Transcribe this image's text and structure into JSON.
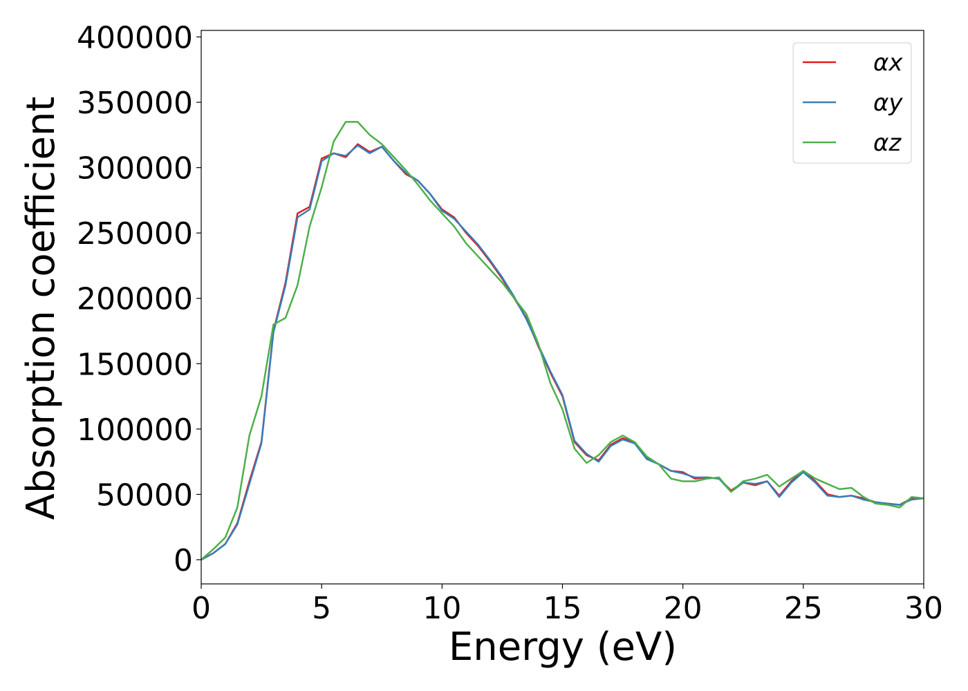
{
  "chart_data": {
    "type": "line",
    "xlabel": "Energy (eV)",
    "ylabel": "Absorption coefficient",
    "x": [
      0,
      0.5,
      1,
      1.5,
      2,
      2.5,
      3,
      3.5,
      4,
      4.5,
      5,
      5.5,
      6,
      6.5,
      7,
      7.5,
      8,
      8.5,
      9,
      9.5,
      10,
      10.5,
      11,
      11.5,
      12,
      12.5,
      13,
      13.5,
      14,
      14.5,
      15,
      15.5,
      16,
      16.5,
      17,
      17.5,
      18,
      18.5,
      19,
      19.5,
      20,
      20.5,
      21,
      21.5,
      22,
      22.5,
      23,
      23.5,
      24,
      24.5,
      25,
      25.5,
      26,
      26.5,
      27,
      27.5,
      28,
      28.5,
      29,
      29.5,
      30
    ],
    "series": [
      {
        "name": "αx",
        "color": "#e41a1c",
        "values": [
          0,
          5000,
          12000,
          28000,
          60000,
          90000,
          175000,
          212000,
          265000,
          270000,
          307000,
          311000,
          308000,
          318000,
          312000,
          316000,
          305000,
          295000,
          290000,
          280000,
          268000,
          262000,
          250000,
          240000,
          228000,
          215000,
          200000,
          185000,
          163000,
          143000,
          125000,
          90000,
          80000,
          76000,
          88000,
          93000,
          90000,
          78000,
          73000,
          68000,
          67000,
          62000,
          63000,
          62000,
          53000,
          59000,
          57000,
          60000,
          49000,
          60000,
          68000,
          60000,
          50000,
          48000,
          49000,
          47000,
          44000,
          43000,
          42000,
          47000,
          47000
        ]
      },
      {
        "name": "αy",
        "color": "#377eb8",
        "values": [
          0,
          5000,
          12000,
          27000,
          58000,
          89000,
          174000,
          210000,
          262000,
          268000,
          305000,
          311000,
          309000,
          317000,
          311000,
          316000,
          305000,
          296000,
          290000,
          280000,
          267000,
          261000,
          251000,
          241000,
          229000,
          216000,
          201000,
          184000,
          164000,
          144000,
          126000,
          91000,
          81000,
          75000,
          87000,
          92000,
          89000,
          77000,
          73000,
          68000,
          66000,
          63000,
          63000,
          62000,
          52000,
          59000,
          58000,
          60000,
          48000,
          59000,
          67000,
          59000,
          49000,
          48000,
          49000,
          46000,
          44000,
          43000,
          42000,
          46000,
          47000
        ]
      },
      {
        "name": "αz",
        "color": "#4daf4a",
        "values": [
          0,
          8000,
          17000,
          40000,
          95000,
          125000,
          180000,
          185000,
          210000,
          255000,
          285000,
          320000,
          335000,
          335000,
          325000,
          318000,
          308000,
          298000,
          287000,
          275000,
          265000,
          255000,
          242000,
          232000,
          222000,
          212000,
          200000,
          188000,
          165000,
          135000,
          115000,
          85000,
          74000,
          80000,
          90000,
          95000,
          90000,
          79000,
          73000,
          62000,
          60000,
          60000,
          62000,
          63000,
          52000,
          60000,
          62000,
          65000,
          56000,
          62000,
          68000,
          62000,
          58000,
          54000,
          55000,
          48000,
          43000,
          42000,
          40000,
          48000,
          47000
        ]
      }
    ],
    "xlim": [
      0,
      30
    ],
    "xticks": [
      0,
      5,
      10,
      15,
      20,
      25,
      30
    ],
    "ylim": [
      -18500,
      405000
    ],
    "yticks": [
      0,
      50000,
      100000,
      150000,
      200000,
      250000,
      300000,
      350000,
      400000
    ],
    "legend": "upper right",
    "grid": false
  }
}
